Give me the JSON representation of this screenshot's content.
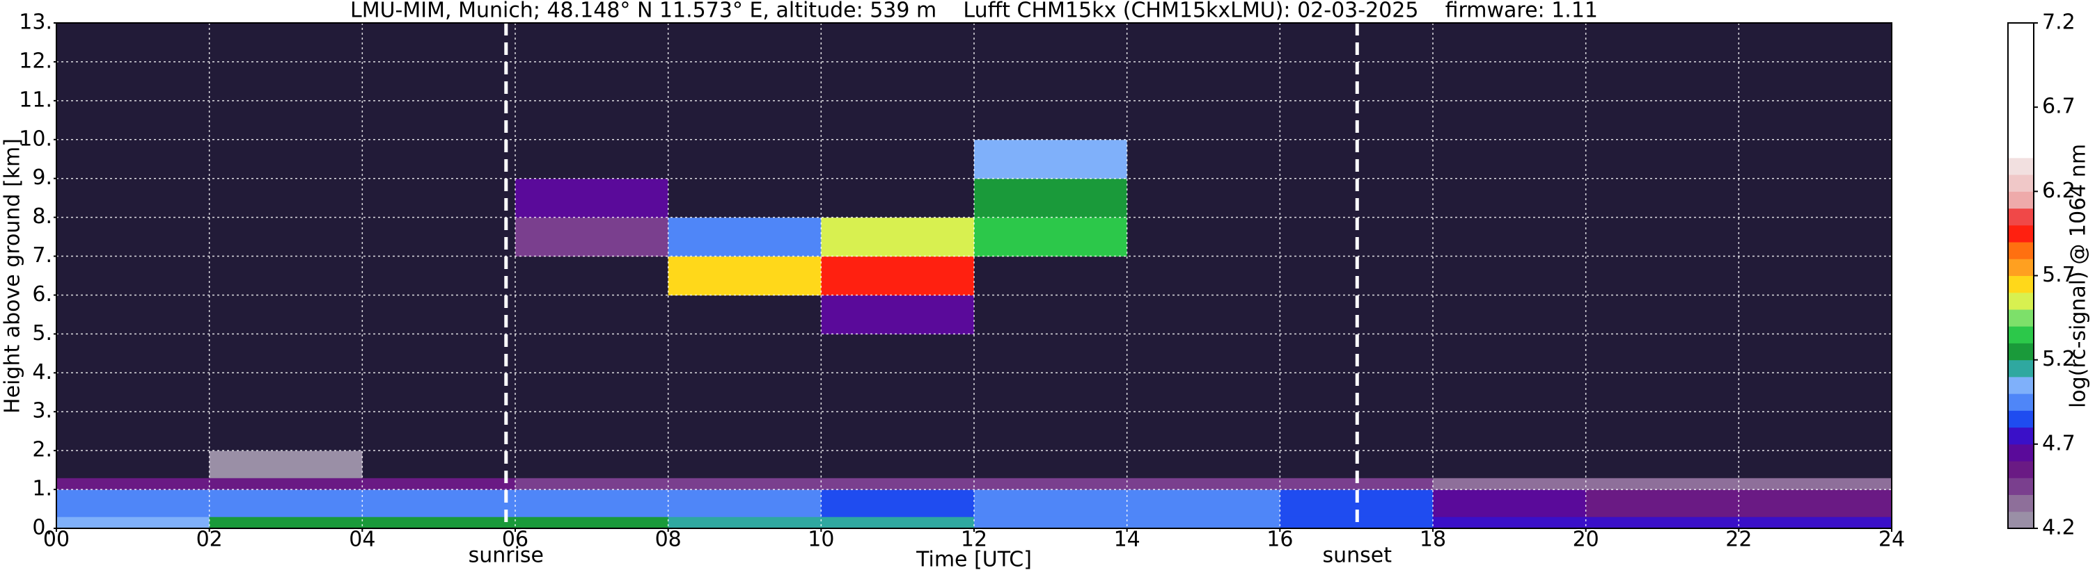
{
  "chart_data": {
    "type": "heatmap",
    "title": "LMU-MIM, Munich; 48.148° N 11.573° E, altitude: 539 m    Lufft CHM15kx (CHM15kxLMU): 02-03-2025    firmware: 1.11",
    "x_label": "Time [UTC]",
    "y_label": "Height above ground [km]",
    "colorbar_label": "log(rc-signal) @ 1064 nm",
    "xlim": [
      0,
      24
    ],
    "ylim": [
      0,
      13
    ],
    "xticks": [
      {
        "value": 0,
        "label": "00"
      },
      {
        "value": 2,
        "label": "02"
      },
      {
        "value": 4,
        "label": "04"
      },
      {
        "value": 6,
        "label": "06"
      },
      {
        "value": 8,
        "label": "08"
      },
      {
        "value": 10,
        "label": "10"
      },
      {
        "value": 12,
        "label": "12"
      },
      {
        "value": 14,
        "label": "14"
      },
      {
        "value": 16,
        "label": "16"
      },
      {
        "value": 18,
        "label": "18"
      },
      {
        "value": 20,
        "label": "20"
      },
      {
        "value": 22,
        "label": "22"
      },
      {
        "value": 24,
        "label": "24"
      }
    ],
    "yticks": [
      {
        "value": 0,
        "label": "0."
      },
      {
        "value": 1,
        "label": "1."
      },
      {
        "value": 2,
        "label": "2."
      },
      {
        "value": 3,
        "label": "3."
      },
      {
        "value": 4,
        "label": "4."
      },
      {
        "value": 5,
        "label": "5."
      },
      {
        "value": 6,
        "label": "6."
      },
      {
        "value": 7,
        "label": "7."
      },
      {
        "value": 8,
        "label": "8."
      },
      {
        "value": 9,
        "label": "9."
      },
      {
        "value": 10,
        "label": "10."
      },
      {
        "value": 11,
        "label": "11."
      },
      {
        "value": 12,
        "label": "12."
      },
      {
        "value": 13,
        "label": "13."
      }
    ],
    "grid": true,
    "grid_color": "#ffffff",
    "xbins": [
      0,
      2,
      4,
      6,
      8,
      10,
      12,
      14,
      16,
      18,
      20,
      22,
      24
    ],
    "ybins": [
      0,
      0.3,
      1,
      1.3,
      2,
      3,
      4,
      5,
      6,
      7,
      8,
      9,
      10,
      11,
      12,
      13
    ],
    "z": [
      [
        5.0,
        5.2,
        5.25,
        5.2,
        5.15,
        5.1,
        4.95,
        4.9,
        4.8,
        4.75,
        4.75,
        4.7
      ],
      [
        4.95,
        4.95,
        4.9,
        4.9,
        4.9,
        4.85,
        4.95,
        4.95,
        4.85,
        4.6,
        4.55,
        4.5
      ],
      [
        4.55,
        4.5,
        4.5,
        4.45,
        4.45,
        4.45,
        4.4,
        4.4,
        4.4,
        4.3,
        4.3,
        4.3
      ],
      [
        4.1,
        4.2,
        4.1,
        4.1,
        4.1,
        4.1,
        4.1,
        4.1,
        4.1,
        4.1,
        4.1,
        4.1
      ],
      [
        4.1,
        4.1,
        4.1,
        4.1,
        4.1,
        4.1,
        4.1,
        4.1,
        4.1,
        4.1,
        4.1,
        4.1
      ],
      [
        4.1,
        4.1,
        4.1,
        4.1,
        4.1,
        4.1,
        4.1,
        4.1,
        4.1,
        4.1,
        4.1,
        4.1
      ],
      [
        4.1,
        4.1,
        4.1,
        4.1,
        4.1,
        4.1,
        4.1,
        4.1,
        4.1,
        4.1,
        4.1,
        4.1
      ],
      [
        4.1,
        4.1,
        4.1,
        4.1,
        4.1,
        4.6,
        4.1,
        4.1,
        4.1,
        4.1,
        4.1,
        4.1
      ],
      [
        4.1,
        4.1,
        4.1,
        4.1,
        5.6,
        5.9,
        4.1,
        4.1,
        4.1,
        4.1,
        4.1,
        4.1
      ],
      [
        4.1,
        4.1,
        4.1,
        4.4,
        4.9,
        5.5,
        5.3,
        4.1,
        4.1,
        4.1,
        4.1,
        4.1
      ],
      [
        4.1,
        4.1,
        4.1,
        4.6,
        4.1,
        4.1,
        5.2,
        4.1,
        4.1,
        4.1,
        4.1,
        4.1
      ],
      [
        4.1,
        4.1,
        4.1,
        4.1,
        4.1,
        4.1,
        5.0,
        4.1,
        4.1,
        4.1,
        4.1,
        4.1
      ],
      [
        4.1,
        4.1,
        4.1,
        4.1,
        4.1,
        4.1,
        4.1,
        4.1,
        4.1,
        4.1,
        4.1,
        4.1
      ],
      [
        4.1,
        4.1,
        4.1,
        4.1,
        4.1,
        4.1,
        4.1,
        4.1,
        4.1,
        4.1,
        4.1,
        4.1
      ],
      [
        4.1,
        4.1,
        4.1,
        4.1,
        4.1,
        4.1,
        4.1,
        4.1,
        4.1,
        4.1,
        4.1,
        4.1
      ]
    ],
    "clim": [
      4.2,
      7.2
    ],
    "cticks": [
      4.2,
      4.7,
      5.2,
      5.7,
      6.2,
      6.7,
      7.2
    ],
    "under_color": "#221b38",
    "colormap": [
      "#9a8fa6",
      "#8e6f9a",
      "#7a3f8e",
      "#6a1a84",
      "#5a0a9a",
      "#3a10c8",
      "#1f4cf0",
      "#4f86f8",
      "#7fb0fa",
      "#2fa8a0",
      "#1a9a3a",
      "#2cc84a",
      "#7de06a",
      "#d8f050",
      "#ffd81a",
      "#ffa020",
      "#ff7010",
      "#ff2010",
      "#f04848",
      "#eeaaaa",
      "#f0c8c8",
      "#f2e0e0",
      "#ffffff",
      "#ffffff",
      "#ffffff",
      "#ffffff",
      "#ffffff",
      "#ffffff",
      "#ffffff",
      "#ffffff"
    ],
    "annotations": [
      {
        "label": "sunrise",
        "x": 5.88
      },
      {
        "label": "sunset",
        "x": 17.01
      }
    ],
    "annotation_color": "#ffffff"
  }
}
